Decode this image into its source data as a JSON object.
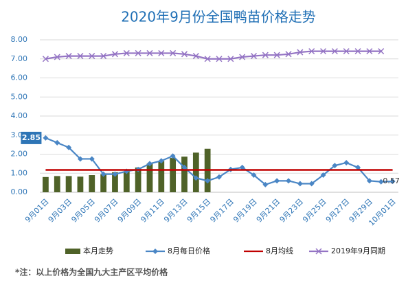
{
  "chart_data": {
    "type": "bar_line",
    "title": "2020年9月份全国鸭苗价格走势",
    "categories": [
      "9月01日",
      null,
      "9月03日",
      null,
      "9月05日",
      null,
      "9月07日",
      null,
      "9月09日",
      null,
      "9月11日",
      null,
      "9月13日",
      null,
      "9月15日",
      null,
      "9月17日",
      null,
      "9月19日",
      null,
      "9月21日",
      null,
      "9月23日",
      null,
      "9月25日",
      null,
      "9月27日",
      null,
      "9月29日",
      null,
      "10月01日"
    ],
    "ylim": [
      0,
      8
    ],
    "yticks": [
      {
        "value": 0,
        "label": "0.00"
      },
      {
        "value": 1,
        "label": "1.00"
      },
      {
        "value": 2,
        "label": "2.00"
      },
      {
        "value": 3,
        "label": "3.00"
      },
      {
        "value": 4,
        "label": "4.00"
      },
      {
        "value": 5,
        "label": "5.00"
      },
      {
        "value": 6,
        "label": "6.00"
      },
      {
        "value": 7,
        "label": "7.00"
      },
      {
        "value": 8,
        "label": "8.00"
      }
    ],
    "grid": true,
    "legend": "bottom",
    "series": [
      {
        "name": "本月走势",
        "kind": "bar",
        "color": "#4f6228",
        "values": [
          0.8,
          0.85,
          0.85,
          0.82,
          0.9,
          0.95,
          1.05,
          1.1,
          1.3,
          1.5,
          1.65,
          1.8,
          1.87,
          2.08,
          2.28,
          null,
          null,
          null,
          null,
          null,
          null,
          null,
          null,
          null,
          null,
          null,
          null,
          null,
          null,
          null,
          null
        ]
      },
      {
        "name": "8月每日价格",
        "kind": "line",
        "marker": "diamond",
        "color": "#4a86c5",
        "values": [
          2.85,
          2.6,
          2.35,
          1.75,
          1.75,
          0.95,
          0.95,
          1.1,
          1.2,
          1.5,
          1.65,
          1.9,
          1.3,
          0.75,
          0.6,
          0.8,
          1.2,
          1.3,
          0.9,
          0.4,
          0.6,
          0.6,
          0.45,
          0.45,
          0.9,
          1.4,
          1.55,
          1.3,
          0.6,
          0.55,
          0.57
        ],
        "value_labels": [
          "2.85",
          null,
          null,
          null,
          null,
          null,
          null,
          null,
          null,
          null,
          null,
          null,
          null,
          null,
          null,
          null,
          null,
          null,
          null,
          null,
          null,
          null,
          null,
          null,
          null,
          null,
          null,
          null,
          null,
          null,
          "0.57"
        ]
      },
      {
        "name": "8月均线",
        "kind": "line",
        "marker": "none",
        "color": "#c00000",
        "values": [
          1.17,
          1.17,
          1.17,
          1.17,
          1.17,
          1.17,
          1.17,
          1.17,
          1.17,
          1.17,
          1.17,
          1.17,
          1.17,
          1.17,
          1.17,
          1.17,
          1.17,
          1.17,
          1.17,
          1.17,
          1.17,
          1.17,
          1.17,
          1.17,
          1.17,
          1.17,
          1.17,
          1.17,
          1.17,
          1.17,
          1.17
        ]
      },
      {
        "name": "2019年9月同期",
        "kind": "line",
        "marker": "x",
        "color": "#9474c4",
        "values": [
          7.0,
          7.1,
          7.15,
          7.15,
          7.15,
          7.15,
          7.25,
          7.3,
          7.3,
          7.3,
          7.3,
          7.3,
          7.25,
          7.15,
          7.0,
          7.0,
          7.0,
          7.1,
          7.15,
          7.2,
          7.2,
          7.25,
          7.35,
          7.4,
          7.4,
          7.4,
          7.4,
          7.4,
          7.4,
          7.4,
          null
        ]
      }
    ],
    "note": "*注：以上价格为全国九大主产区平均价格"
  }
}
